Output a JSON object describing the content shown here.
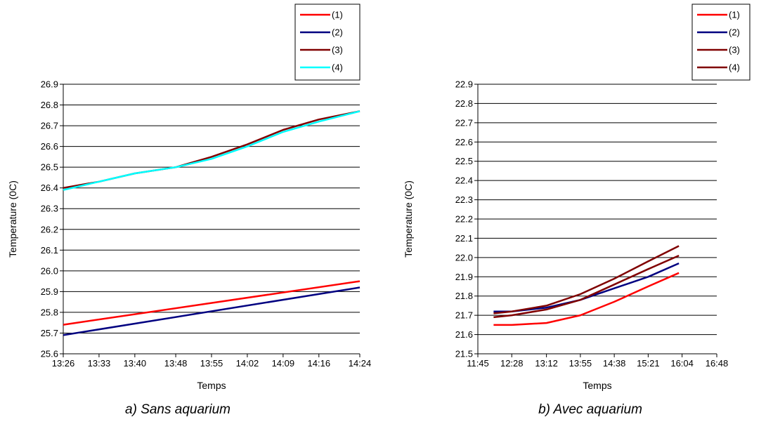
{
  "chart_data": [
    {
      "type": "line",
      "caption": "a) Sans aquarium",
      "xlabel": "Temps",
      "ylabel": "Temperature (0C)",
      "x_ticks": [
        "13:26",
        "13:33",
        "13:40",
        "13:48",
        "13:55",
        "14:02",
        "14:09",
        "14:16",
        "14:24"
      ],
      "y_ticks": [
        "25.6",
        "25.7",
        "25.8",
        "25.9",
        "26.0",
        "26.1",
        "26.2",
        "26.3",
        "26.4",
        "26.5",
        "26.6",
        "26.7",
        "26.8",
        "26.9"
      ],
      "xlim": [
        "13:26",
        "14:24"
      ],
      "ylim": [
        25.6,
        26.9
      ],
      "grid": "horizontal",
      "legend_position": "top-right",
      "series": [
        {
          "name": "(1)",
          "color": "#ff0000",
          "x": [
            "13:26",
            "14:24"
          ],
          "values": [
            25.74,
            25.95
          ]
        },
        {
          "name": "(2)",
          "color": "#000080",
          "x": [
            "13:26",
            "14:24"
          ],
          "values": [
            25.69,
            25.92
          ]
        },
        {
          "name": "(3)",
          "color": "#800000",
          "x": [
            "13:26",
            "13:33",
            "13:40",
            "13:48",
            "13:55",
            "14:02",
            "14:09",
            "14:16",
            "14:24"
          ],
          "values": [
            26.4,
            26.43,
            26.47,
            26.5,
            26.55,
            26.61,
            26.68,
            26.73,
            26.77
          ]
        },
        {
          "name": "(4)",
          "color": "#00ffff",
          "x": [
            "13:26",
            "13:33",
            "13:40",
            "13:48",
            "13:55",
            "14:02",
            "14:09",
            "14:16",
            "14:24"
          ],
          "values": [
            26.39,
            26.43,
            26.47,
            26.5,
            26.54,
            26.6,
            26.67,
            26.72,
            26.77
          ]
        }
      ]
    },
    {
      "type": "line",
      "caption": "b) Avec aquarium",
      "xlabel": "Temps",
      "ylabel": "Temperature (0C)",
      "x_ticks": [
        "11:45",
        "12:28",
        "13:12",
        "13:55",
        "14:38",
        "15:21",
        "16:04",
        "16:48"
      ],
      "y_ticks": [
        "21.5",
        "21.6",
        "21.7",
        "21.8",
        "21.9",
        "22.0",
        "22.1",
        "22.2",
        "22.3",
        "22.4",
        "22.5",
        "22.6",
        "22.7",
        "22.8",
        "22.9"
      ],
      "xlim": [
        "11:45",
        "16:48"
      ],
      "ylim": [
        21.5,
        22.9
      ],
      "grid": "horizontal",
      "legend_position": "top-right",
      "series": [
        {
          "name": "(1)",
          "color": "#ff0000",
          "x": [
            "12:05",
            "12:28",
            "13:12",
            "13:55",
            "14:38",
            "15:21",
            "16:00"
          ],
          "values": [
            21.65,
            21.65,
            21.66,
            21.7,
            21.77,
            21.85,
            21.92
          ]
        },
        {
          "name": "(2)",
          "color": "#000080",
          "x": [
            "12:05",
            "12:28",
            "13:12",
            "13:55",
            "14:38",
            "15:21",
            "16:00"
          ],
          "values": [
            21.72,
            21.72,
            21.74,
            21.78,
            21.84,
            21.9,
            21.97
          ]
        },
        {
          "name": "(3)",
          "color": "#800000",
          "x": [
            "12:05",
            "12:28",
            "13:12",
            "13:55",
            "14:38",
            "15:21",
            "16:00"
          ],
          "values": [
            21.71,
            21.72,
            21.75,
            21.81,
            21.89,
            21.98,
            22.06
          ]
        },
        {
          "name": "(4)",
          "color": "#800000",
          "x": [
            "12:05",
            "12:28",
            "13:12",
            "13:55",
            "14:38",
            "15:21",
            "16:00"
          ],
          "values": [
            21.69,
            21.7,
            21.73,
            21.78,
            21.86,
            21.94,
            22.01
          ]
        }
      ]
    }
  ]
}
